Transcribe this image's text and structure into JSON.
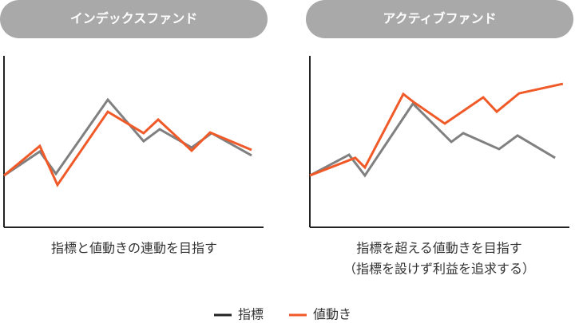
{
  "chart_data": [
    {
      "type": "line",
      "title": "インデックスファンド",
      "caption": [
        "指標と値動きの連動を目指す"
      ],
      "xlim": [
        0,
        100
      ],
      "ylim": [
        0,
        100
      ],
      "series": [
        {
          "name": "指標",
          "color": "#808080",
          "x": [
            0,
            13.8,
            20,
            40,
            53.8,
            60,
            72.3,
            80,
            95.4
          ],
          "values": [
            30.2,
            44.2,
            31.2,
            74.4,
            50.2,
            57.2,
            46.5,
            54.9,
            41.9
          ]
        },
        {
          "name": "値動き",
          "color": "#f05a28",
          "x": [
            0,
            13.8,
            20.6,
            40,
            53.8,
            59.4,
            72.3,
            79.4,
            95.4
          ],
          "values": [
            30.2,
            47.4,
            24.7,
            67.4,
            54.9,
            62.8,
            44.7,
            55.3,
            45.1
          ]
        }
      ]
    },
    {
      "type": "line",
      "title": "アクティブファンド",
      "caption": [
        "指標を超える値動きを目指す",
        "（指標を設けず利益を追求する）"
      ],
      "xlim": [
        0,
        100
      ],
      "ylim": [
        0,
        100
      ],
      "series": [
        {
          "color": "#808080",
          "x": [
            0,
            15.1,
            21.2,
            39.7,
            54.5,
            59.1,
            72.9,
            80,
            94.5
          ],
          "values": [
            30.2,
            42.3,
            30.2,
            72.1,
            49.8,
            54.9,
            45.6,
            53.5,
            40.5
          ]
        },
        {
          "color": "#f05a28",
          "x": [
            0,
            17.5,
            21.2,
            36,
            40,
            52,
            66.8,
            72,
            80.6,
            97.5
          ],
          "values": [
            30.2,
            40.5,
            34.9,
            77.7,
            73.0,
            60.5,
            75.8,
            67.4,
            78.1,
            83.7
          ]
        }
      ]
    }
  ]
}
